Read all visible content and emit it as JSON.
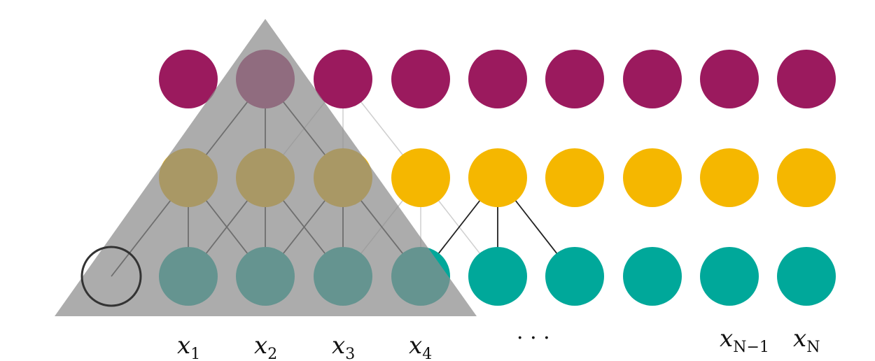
{
  "diagram": {
    "colors": {
      "top_layer": "#9b1a5e",
      "middle_layer": "#f5b700",
      "bottom_layer": "#00a89a",
      "receptive_field": "#8c8c8c",
      "active_edge": "#222222",
      "faint_edge": "#cfcfcf",
      "padding_node_stroke": "#333333"
    },
    "layers": {
      "top": {
        "node_count": 9
      },
      "middle": {
        "node_count": 9
      },
      "bottom": {
        "node_count": 9,
        "padding_node": true
      }
    },
    "input_labels": [
      {
        "base": "x",
        "sub": "1"
      },
      {
        "base": "x",
        "sub": "2"
      },
      {
        "base": "x",
        "sub": "3"
      },
      {
        "base": "x",
        "sub": "4"
      },
      {
        "base": "x",
        "sub": "N−1"
      },
      {
        "base": "x",
        "sub": "N"
      }
    ],
    "ellipsis": "· · ·"
  }
}
